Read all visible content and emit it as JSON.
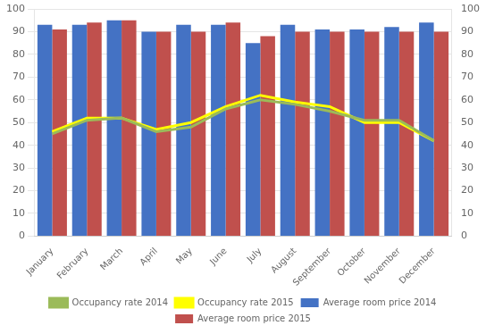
{
  "chart_data": {
    "type": "bar",
    "categories": [
      "January",
      "February",
      "March",
      "April",
      "May",
      "June",
      "July",
      "August",
      "September",
      "October",
      "November",
      "December"
    ],
    "series": [
      {
        "name": "Average room price 2014",
        "type": "bar",
        "color": "#4472C4",
        "values": [
          93,
          93,
          95,
          90,
          93,
          93,
          85,
          93,
          91,
          91,
          92,
          94
        ]
      },
      {
        "name": "Average room price 2015",
        "type": "bar",
        "color": "#C0504D",
        "values": [
          91,
          94,
          95,
          90,
          90,
          94,
          88,
          90,
          90,
          90,
          90,
          90
        ]
      },
      {
        "name": "Occupancy rate 2014",
        "type": "line",
        "axis": "y2",
        "color": "#9BBB59",
        "values": [
          45,
          51,
          52,
          46,
          48,
          56,
          60,
          58,
          55,
          51,
          51,
          42
        ]
      },
      {
        "name": "Occupancy rate 2015",
        "type": "line",
        "axis": "y2",
        "color": "#FFFF00",
        "values": [
          46,
          52,
          52,
          47,
          50,
          57,
          62,
          59,
          57,
          50,
          50,
          42
        ]
      }
    ],
    "ylim": [
      0,
      100
    ],
    "yticks": [
      0,
      10,
      20,
      30,
      40,
      50,
      60,
      70,
      80,
      90,
      100
    ],
    "y2lim": [
      0,
      100
    ],
    "y2ticks": [
      0,
      10,
      20,
      30,
      40,
      50,
      60,
      70,
      80,
      90,
      100
    ],
    "grid": true,
    "legend": "bottom"
  }
}
